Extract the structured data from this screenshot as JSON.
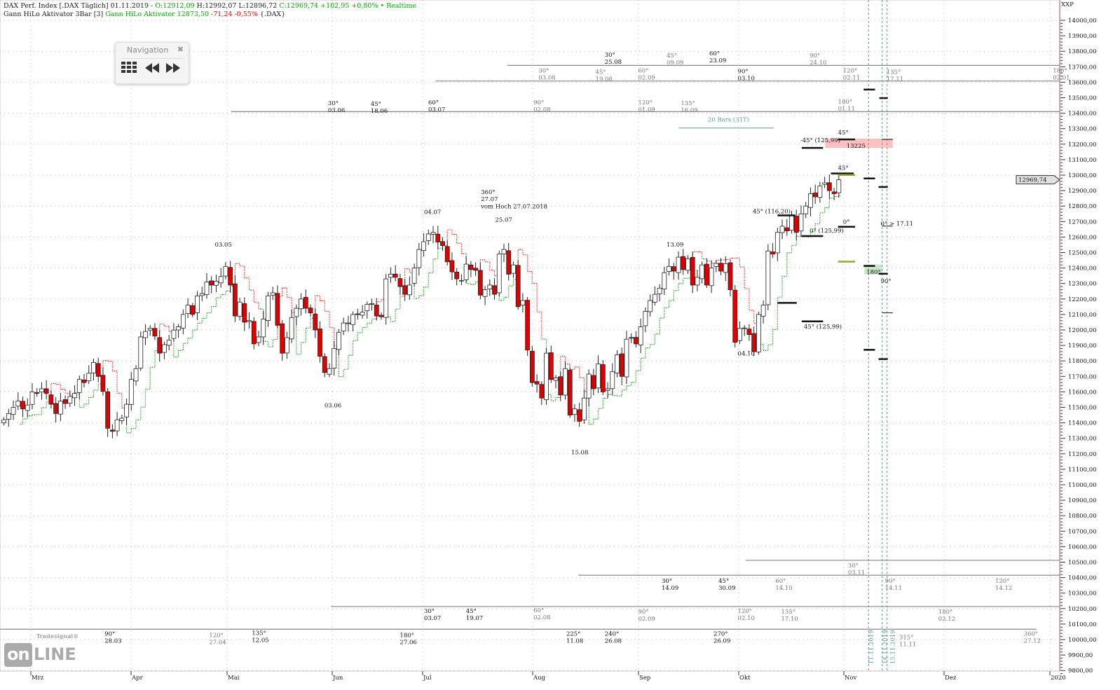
{
  "header": {
    "line1_prefix": "DAX Perf. Index [.DAX Täglich] 01.11.2019 - ",
    "open": "O:12912,09",
    "high_low": " H:12992,07 L:12896,72 ",
    "close": "C:12969,74 +102,95 +0,80% • Realtime",
    "line2_prefix": "Gann HiLo Aktivator 3Bar [3] ",
    "indicator": "Gann HiLo Aktivator 12873,50",
    "indicator_change": " -71,24 -0,55%",
    "symbol": " {.DAX}"
  },
  "navigation": {
    "title": "Navigation",
    "close_icon": "close-icon",
    "grid_icon": "grid-icon",
    "back_icon": "rewind-icon",
    "forward_icon": "fast-forward-icon"
  },
  "logo": {
    "brand": "Tradesignal®",
    "on": "on",
    "line": "LINE"
  },
  "colors": {
    "up_candle": "#ffffff",
    "down_candle": "#e00000",
    "hilo_up": "#008800",
    "hilo_down": "#ee0000",
    "cycle_line": "#888888",
    "time_line": "#5a9a9a",
    "zone_red": "#ffc0c0",
    "zone_green": "#c8e6c8",
    "olive": "#a0a030"
  },
  "chart_data": {
    "type": "candlestick",
    "title": "DAX Perf. Index [.DAX Täglich]",
    "axis_unit": "XXP",
    "ylim": [
      9750,
      14080
    ],
    "y_ticks": [
      14000,
      13900,
      13800,
      13700,
      13600,
      13500,
      13400,
      13300,
      13200,
      13100,
      13000,
      12900,
      12800,
      12700,
      12600,
      12500,
      12400,
      12300,
      12200,
      12100,
      12000,
      11900,
      11800,
      11700,
      11600,
      11500,
      11400,
      11300,
      11200,
      11100,
      11000,
      10900,
      10800,
      10700,
      10600,
      10500,
      10400,
      10300,
      10200,
      10100,
      10000,
      9900,
      9800
    ],
    "y_tick_suffix": ",00",
    "x_ticks": [
      "Mrz",
      "Apr",
      "Mai",
      "Jun",
      "Jul",
      "Aug",
      "Sep",
      "Okt",
      "Nov",
      "Dez",
      "2020"
    ],
    "last_price": "12969,74",
    "grid": true,
    "first_bar": "21.02.2019",
    "last_bar": "01.11.2019",
    "close": [
      11420,
      11460,
      11500,
      11540,
      11490,
      11515,
      11600,
      11590,
      11620,
      11590,
      11520,
      11460,
      11540,
      11525,
      11570,
      11590,
      11680,
      11660,
      11720,
      11790,
      11700,
      11603,
      11365,
      11345,
      11420,
      11430,
      11520,
      11680,
      11750,
      11955,
      11990,
      12010,
      11960,
      11850,
      11905,
      11935,
      11999,
      12020,
      12100,
      12160,
      12100,
      12220,
      12235,
      12310,
      12290,
      12315,
      12345,
      12410,
      12290,
      12090,
      12180,
      12050,
      12060,
      11910,
      11955,
      12070,
      12220,
      12240,
      12030,
      11850,
      11950,
      12080,
      12140,
      12200,
      12140,
      12110,
      12000,
      11830,
      11725,
      11750,
      11880,
      11985,
      12045,
      12045,
      12100,
      12100,
      12115,
      12165,
      12170,
      12090,
      12085,
      12330,
      12360,
      12340,
      12280,
      12230,
      12290,
      12400,
      12520,
      12570,
      12620,
      12630,
      12568,
      12545,
      12440,
      12375,
      12330,
      12320,
      12425,
      12390,
      12385,
      12225,
      12260,
      12290,
      12230,
      12490,
      12520,
      12360,
      12420,
      12150,
      12190,
      11870,
      11660,
      11650,
      11560,
      11850,
      11680,
      11690,
      11580,
      11750,
      11450,
      11490,
      11410,
      11560,
      11715,
      11620,
      11780,
      11600,
      11620,
      11730,
      11840,
      11700,
      11940,
      11950,
      11910,
      12020,
      12120,
      12190,
      12230,
      12270,
      12370,
      12410,
      12380,
      12470,
      12390,
      12460,
      12290,
      12340,
      12420,
      12290,
      12400,
      12430,
      12380,
      12428,
      12260,
      11920,
      12010,
      12013,
      11970,
      11860,
      12100,
      12160,
      12510,
      12490,
      12630,
      12670,
      12640,
      12740,
      12630,
      12750,
      12800,
      12880,
      12860,
      12930,
      12950,
      12900,
      12880,
      12970
    ],
    "cycle_labels": [
      {
        "angle": "30°",
        "date": "25.08",
        "tone": "dark"
      },
      {
        "angle": "45°",
        "date": "09.09",
        "tone": "gray"
      },
      {
        "angle": "60°",
        "date": "23.09",
        "tone": "dark"
      },
      {
        "angle": "90°",
        "date": "24.10",
        "tone": "gray"
      },
      {
        "angle": "30°",
        "date": "03.08",
        "tone": "gray"
      },
      {
        "angle": "45°",
        "date": "19.08",
        "tone": "gray"
      },
      {
        "angle": "60°",
        "date": "02.09",
        "tone": "gray"
      },
      {
        "angle": "90°",
        "date": "03.10",
        "tone": "dark"
      },
      {
        "angle": "120°",
        "date": "02.11",
        "tone": "gray"
      },
      {
        "angle": "135°",
        "date": "17.11",
        "tone": "gray"
      },
      {
        "angle": "180°",
        "date": "02.01",
        "tone": "gray"
      },
      {
        "angle": "30°",
        "date": "03.06",
        "tone": "dark"
      },
      {
        "angle": "45°",
        "date": "18.06",
        "tone": "dark"
      },
      {
        "angle": "60°",
        "date": "03.07",
        "tone": "dark"
      },
      {
        "angle": "90°",
        "date": "02.08",
        "tone": "gray"
      },
      {
        "angle": "120°",
        "date": "01.09",
        "tone": "gray"
      },
      {
        "angle": "135°",
        "date": "16.09",
        "tone": "gray"
      },
      {
        "angle": "180°",
        "date": "01.11",
        "tone": "gray"
      },
      {
        "angle": "30°",
        "date": "03.11",
        "tone": "gray"
      },
      {
        "angle": "30°",
        "date": "14.09",
        "tone": "dark"
      },
      {
        "angle": "45°",
        "date": "30.09",
        "tone": "dark"
      },
      {
        "angle": "60°",
        "date": "14.10",
        "tone": "gray"
      },
      {
        "angle": "90°",
        "date": "14.11",
        "tone": "gray"
      },
      {
        "angle": "120°",
        "date": "14.12",
        "tone": "gray"
      },
      {
        "angle": "30°",
        "date": "03.07",
        "tone": "dark"
      },
      {
        "angle": "45°",
        "date": "19.07",
        "tone": "dark"
      },
      {
        "angle": "60°",
        "date": "02.08",
        "tone": "gray"
      },
      {
        "angle": "90°",
        "date": "02.09",
        "tone": "gray"
      },
      {
        "angle": "120°",
        "date": "02.10",
        "tone": "gray"
      },
      {
        "angle": "135°",
        "date": "17.10",
        "tone": "gray"
      },
      {
        "angle": "180°",
        "date": "02.12",
        "tone": "gray"
      },
      {
        "angle": "90°",
        "date": "28.03",
        "tone": "dark"
      },
      {
        "angle": "120°",
        "date": "27.04",
        "tone": "gray"
      },
      {
        "angle": "135°",
        "date": "12.05",
        "tone": "dark"
      },
      {
        "angle": "180°",
        "date": "27.06",
        "tone": "dark"
      },
      {
        "angle": "225°",
        "date": "11.08",
        "tone": "dark"
      },
      {
        "angle": "240°",
        "date": "26.08",
        "tone": "dark"
      },
      {
        "angle": "270°",
        "date": "26.09",
        "tone": "dark"
      },
      {
        "angle": "315°",
        "date": "11.11",
        "tone": "gray"
      },
      {
        "angle": "360°",
        "date": "27.12",
        "tone": "gray"
      }
    ],
    "price_annotations": [
      "03.05",
      "03.06",
      "04.07",
      "360°",
      "27.07",
      "vom Hoch 27.07.2018",
      "25.07",
      "13.09",
      "15.08",
      "04.10",
      "45° (116,20)",
      "0° (125,99)",
      "0°",
      "45°",
      "-45° (125,99)",
      "13225",
      "45°",
      "0° > 17.11",
      "180°",
      "90°",
      "45° (125,99)",
      "20 Bars (31T)"
    ],
    "time_markers": [
      "11.11.2019",
      "14.11.2019",
      "15.11.2019"
    ]
  }
}
